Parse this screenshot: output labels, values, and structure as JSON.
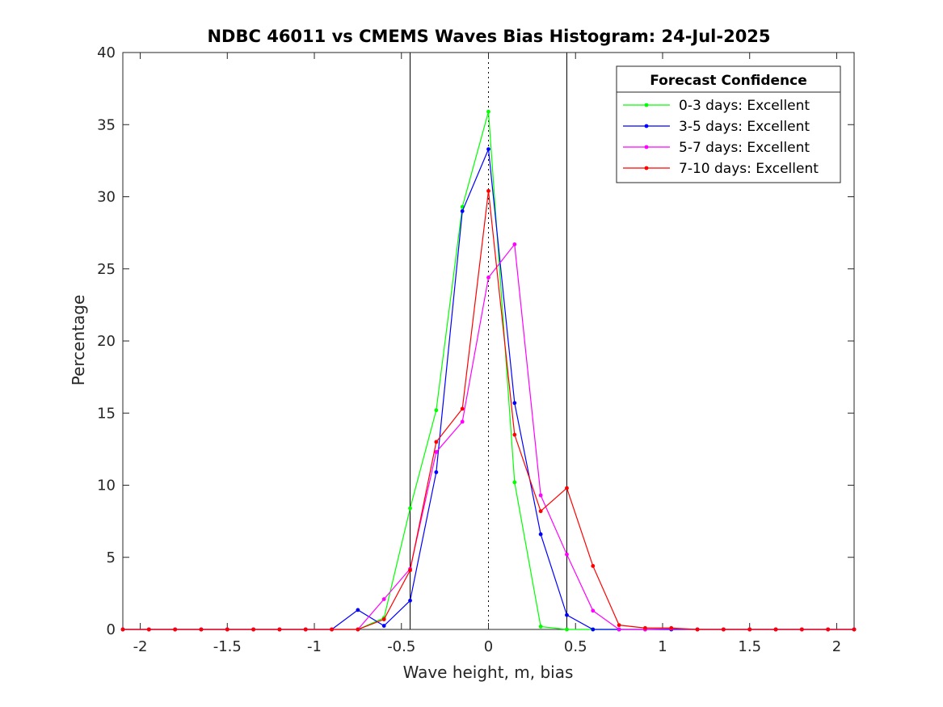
{
  "chart_data": {
    "type": "line",
    "title": "NDBC 46011 vs CMEMS Waves Bias Histogram: 24-Jul-2025",
    "xlabel": "Wave height, m, bias",
    "ylabel": "Percentage",
    "xlim": [
      -2.1,
      2.1
    ],
    "ylim": [
      0,
      40
    ],
    "xticks": [
      -2,
      -1.5,
      -1,
      -0.5,
      0,
      0.5,
      1,
      1.5,
      2
    ],
    "xtick_labels": [
      "-2",
      "-1.5",
      "-1",
      "-0.5",
      "0",
      "0.5",
      "1",
      "1.5",
      "2"
    ],
    "yticks": [
      0,
      5,
      10,
      15,
      20,
      25,
      30,
      35,
      40
    ],
    "ytick_labels": [
      "0",
      "5",
      "10",
      "15",
      "20",
      "25",
      "30",
      "35",
      "40"
    ],
    "vlines_solid": [
      -0.45,
      0.45
    ],
    "vline_dotted": 0,
    "grid": false,
    "legend": {
      "title": "Forecast Confidence",
      "placement": "top-right"
    },
    "x": [
      -2.1,
      -1.95,
      -1.8,
      -1.65,
      -1.5,
      -1.35,
      -1.2,
      -1.05,
      -0.9,
      -0.75,
      -0.6,
      -0.45,
      -0.3,
      -0.15,
      0,
      0.15,
      0.3,
      0.45,
      0.6,
      0.75,
      0.9,
      1.05,
      1.2,
      1.35,
      1.5,
      1.65,
      1.8,
      1.95,
      2.1
    ],
    "series": [
      {
        "name": "0-3 days: Excellent",
        "color": "#00ff00",
        "values": [
          0,
          0,
          0,
          0,
          0,
          0,
          0,
          0,
          0,
          0,
          0.8,
          8.4,
          15.2,
          29.3,
          35.9,
          10.2,
          0.2,
          0,
          0,
          0,
          0,
          0,
          0,
          0,
          0,
          0,
          0,
          0,
          0
        ]
      },
      {
        "name": "3-5 days: Excellent",
        "color": "#0000ff",
        "values": [
          0,
          0,
          0,
          0,
          0,
          0,
          0,
          0,
          0,
          1.35,
          0.25,
          2.0,
          10.9,
          29.0,
          33.3,
          15.7,
          6.6,
          1.0,
          0,
          0,
          0,
          0,
          0,
          0,
          0,
          0,
          0,
          0,
          0
        ]
      },
      {
        "name": "5-7 days: Excellent",
        "color": "#ff00ff",
        "values": [
          0,
          0,
          0,
          0,
          0,
          0,
          0,
          0,
          0,
          0,
          2.1,
          4.2,
          12.3,
          14.4,
          24.4,
          26.7,
          9.3,
          5.2,
          1.3,
          0,
          0,
          0.05,
          0,
          0,
          0,
          0,
          0,
          0,
          0
        ]
      },
      {
        "name": "7-10 days: Excellent",
        "color": "#ff0000",
        "values": [
          0,
          0,
          0,
          0,
          0,
          0,
          0,
          0,
          0,
          0,
          0.7,
          4.1,
          13.0,
          15.3,
          30.4,
          13.5,
          8.2,
          9.8,
          4.4,
          0.3,
          0.1,
          0.1,
          0,
          0,
          0,
          0,
          0,
          0,
          0
        ]
      }
    ]
  }
}
